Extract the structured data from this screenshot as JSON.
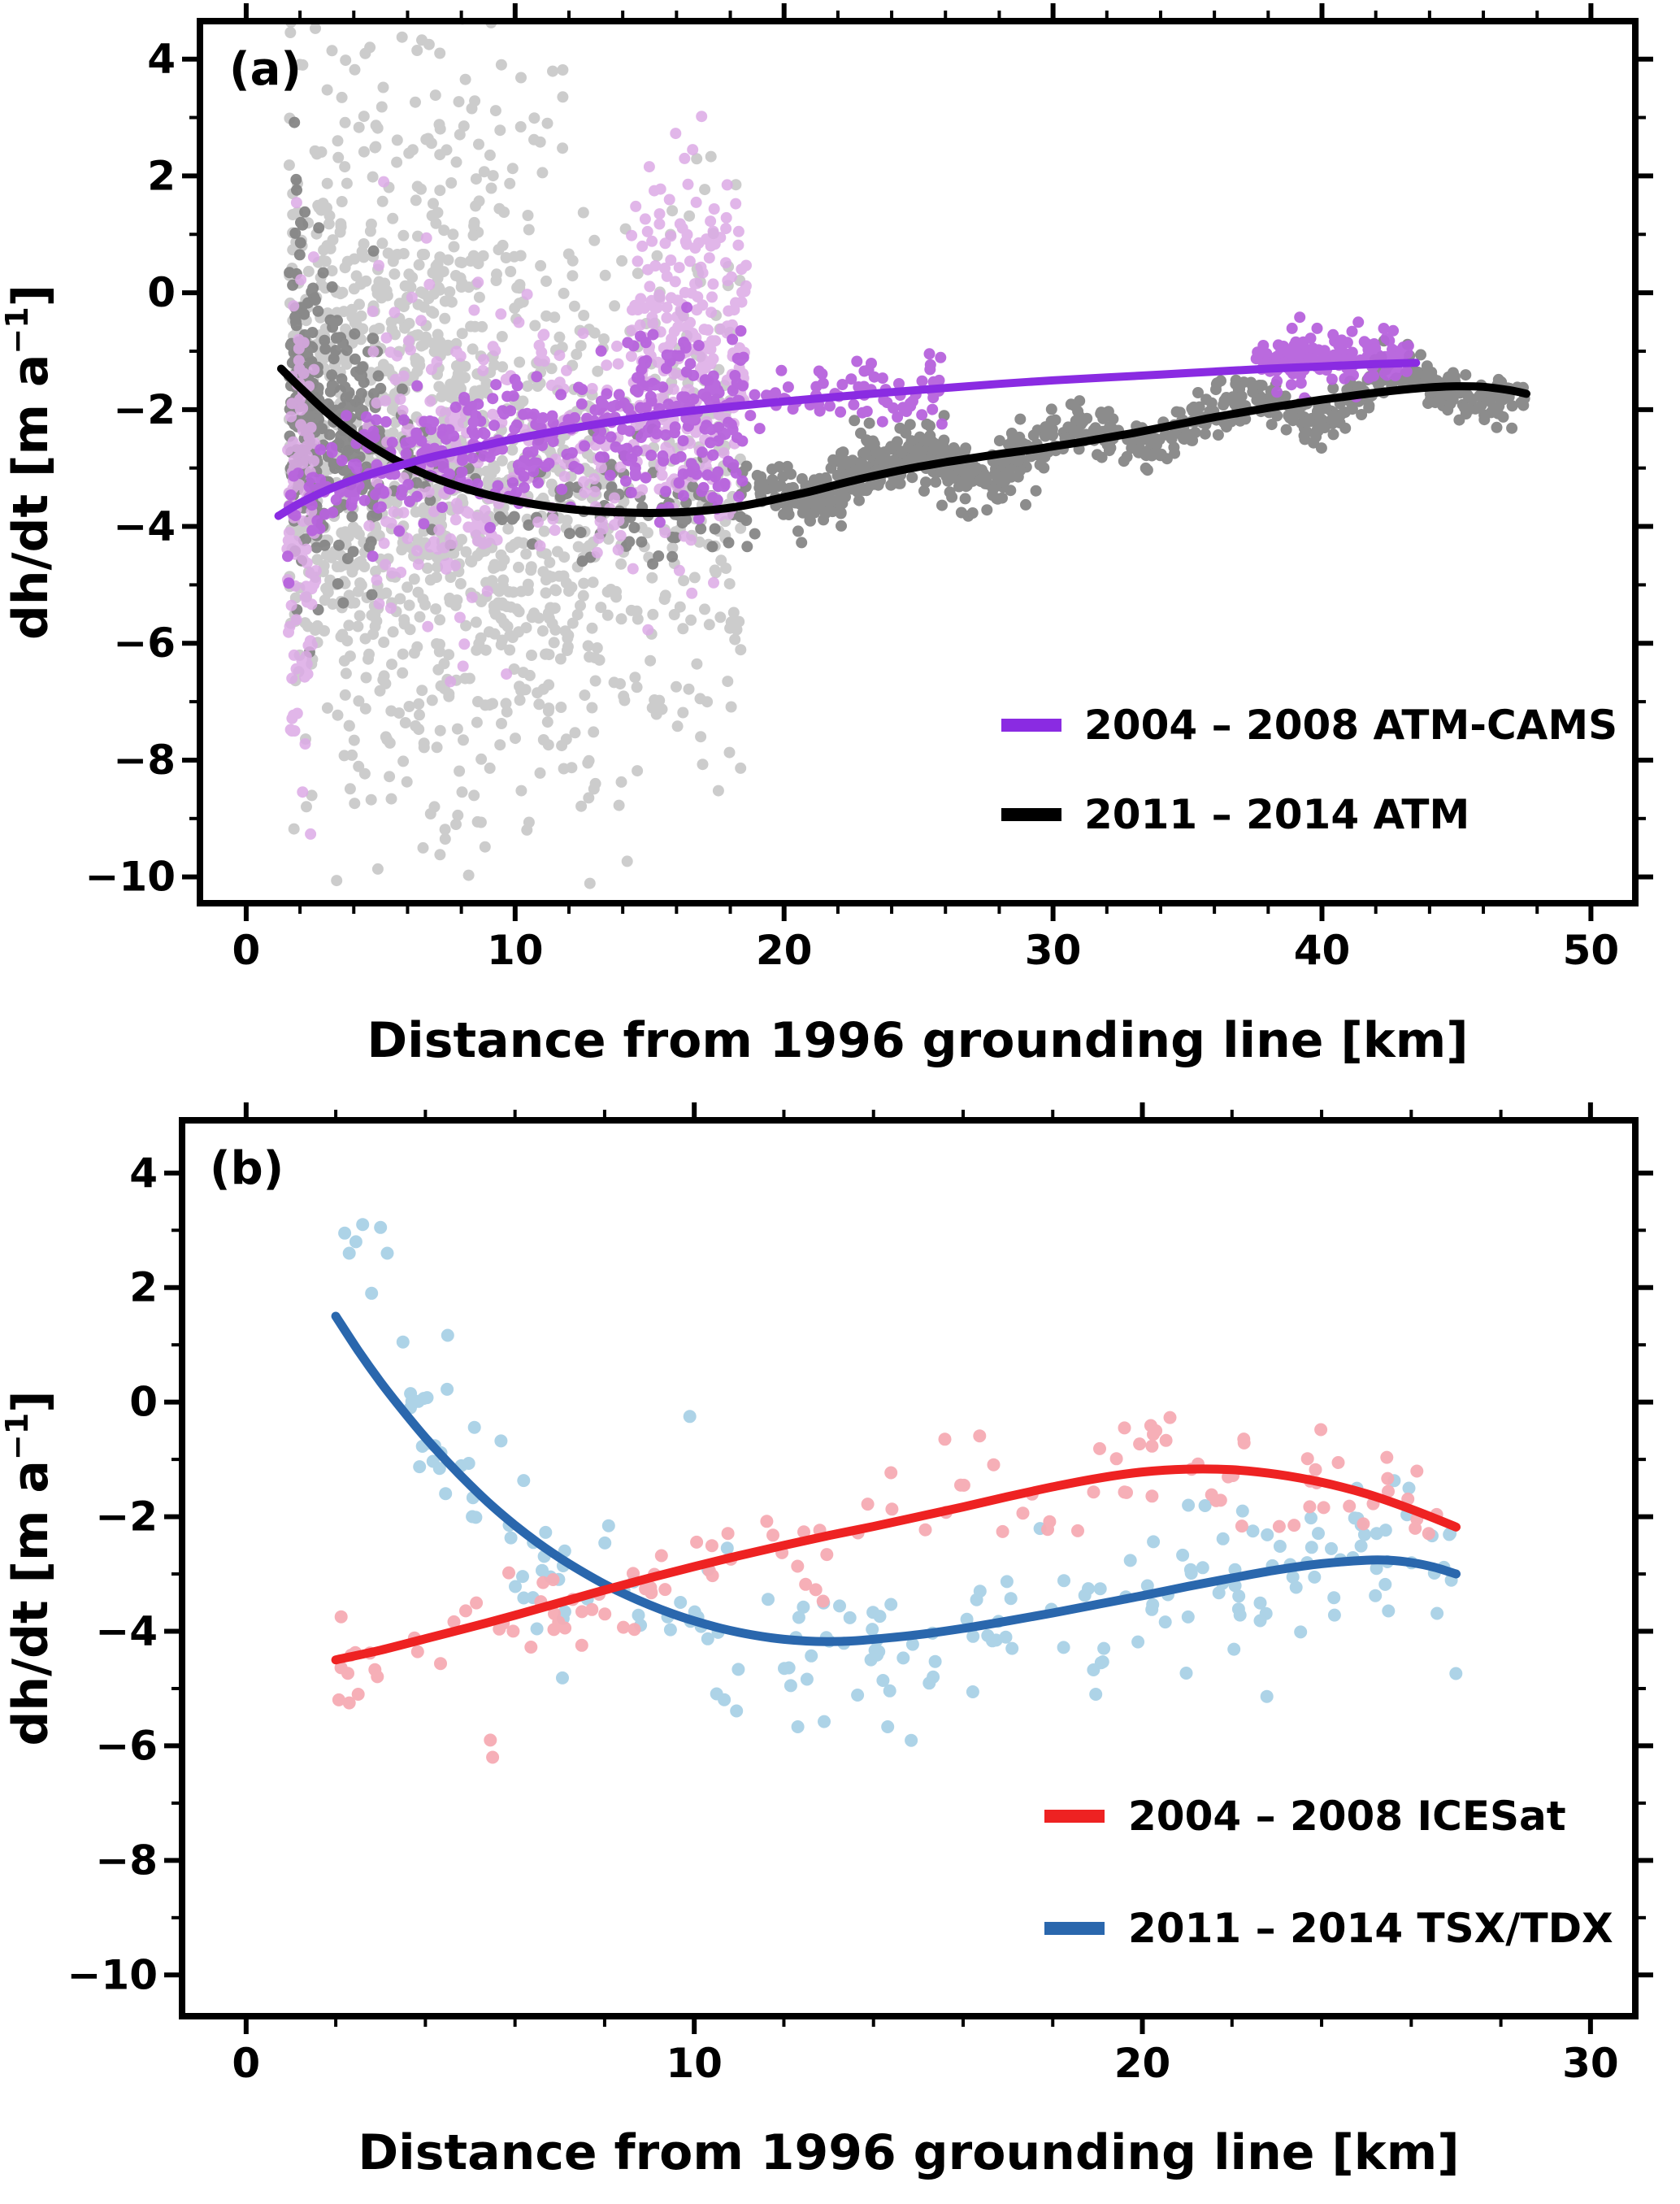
{
  "figure_background": "#ffffff",
  "chart_data": [
    {
      "id": "a",
      "type": "scatter",
      "panel_label": "(a)",
      "xlabel": "Distance from 1996 grounding line [km]",
      "ylabel": {
        "pre": "dh/dt [m a",
        "sup": "−1",
        "post": "]"
      },
      "xlim": [
        -1.72,
        51.65
      ],
      "ylim": [
        -10.45,
        4.65
      ],
      "xticks": {
        "major": [
          0,
          10,
          20,
          30,
          40,
          50
        ],
        "minor_step": 2
      },
      "yticks": {
        "major": [
          4,
          2,
          0,
          -2,
          -4,
          -6,
          -8,
          -10
        ],
        "minor_step": 1
      },
      "grid": false,
      "legend_position": "lower right",
      "curves": {
        "cams": [
          [
            1.2,
            -3.82
          ],
          [
            2,
            -3.6
          ],
          [
            3,
            -3.38
          ],
          [
            4,
            -3.2
          ],
          [
            5,
            -3.05
          ],
          [
            6,
            -2.92
          ],
          [
            7,
            -2.8
          ],
          [
            8,
            -2.7
          ],
          [
            9,
            -2.6
          ],
          [
            10,
            -2.5
          ],
          [
            12,
            -2.33
          ],
          [
            14,
            -2.18
          ],
          [
            16,
            -2.05
          ],
          [
            18,
            -1.95
          ],
          [
            20,
            -1.86
          ],
          [
            22,
            -1.78
          ],
          [
            24,
            -1.7
          ],
          [
            26,
            -1.63
          ],
          [
            28,
            -1.56
          ],
          [
            30,
            -1.5
          ],
          [
            32,
            -1.45
          ],
          [
            34,
            -1.4
          ],
          [
            36,
            -1.35
          ],
          [
            38,
            -1.3
          ],
          [
            40,
            -1.26
          ],
          [
            42,
            -1.22
          ],
          [
            43.5,
            -1.2
          ]
        ],
        "atm": [
          [
            1.3,
            -1.3
          ],
          [
            2,
            -1.62
          ],
          [
            3,
            -2.05
          ],
          [
            4,
            -2.42
          ],
          [
            5,
            -2.72
          ],
          [
            6,
            -2.97
          ],
          [
            7,
            -3.17
          ],
          [
            8,
            -3.33
          ],
          [
            9,
            -3.46
          ],
          [
            10,
            -3.56
          ],
          [
            11,
            -3.64
          ],
          [
            12,
            -3.7
          ],
          [
            13,
            -3.74
          ],
          [
            14,
            -3.76
          ],
          [
            15,
            -3.77
          ],
          [
            16,
            -3.76
          ],
          [
            17,
            -3.73
          ],
          [
            18,
            -3.68
          ],
          [
            19,
            -3.6
          ],
          [
            20,
            -3.5
          ],
          [
            21,
            -3.4
          ],
          [
            22,
            -3.28
          ],
          [
            23,
            -3.17
          ],
          [
            24,
            -3.07
          ],
          [
            25,
            -2.98
          ],
          [
            26,
            -2.9
          ],
          [
            27,
            -2.83
          ],
          [
            28,
            -2.76
          ],
          [
            29,
            -2.7
          ],
          [
            30,
            -2.63
          ],
          [
            31,
            -2.56
          ],
          [
            32,
            -2.48
          ],
          [
            33,
            -2.4
          ],
          [
            34,
            -2.31
          ],
          [
            35,
            -2.22
          ],
          [
            36,
            -2.13
          ],
          [
            37,
            -2.05
          ],
          [
            38,
            -1.97
          ],
          [
            39,
            -1.9
          ],
          [
            40,
            -1.83
          ],
          [
            41,
            -1.77
          ],
          [
            42,
            -1.71
          ],
          [
            43,
            -1.66
          ],
          [
            44,
            -1.62
          ],
          [
            45,
            -1.6
          ],
          [
            46,
            -1.61
          ],
          [
            47,
            -1.67
          ],
          [
            47.6,
            -1.73
          ]
        ]
      },
      "scatter": [
        {
          "name": "ATM 2011-2014 point cloud light gray",
          "color": "#c4c4c4",
          "opacity": 0.85,
          "radius": 7,
          "clusters": [
            {
              "x0": 1.6,
              "x1": 3.6,
              "n": 240,
              "y": -2.2,
              "sd": 2.7
            },
            {
              "x0": 3.6,
              "x1": 6.5,
              "n": 300,
              "y": -3.0,
              "sd": 3.0
            },
            {
              "x0": 6.5,
              "x1": 9.5,
              "n": 330,
              "y": -3.0,
              "sd": 3.1
            },
            {
              "x0": 9.5,
              "x1": 13.0,
              "n": 260,
              "y": -3.8,
              "sd": 2.6
            },
            {
              "x0": 13.0,
              "x1": 18.5,
              "n": 230,
              "y": -3.6,
              "sd": 2.3
            },
            {
              "x0": 2.0,
              "x1": 12.0,
              "n": 90,
              "y": 0.8,
              "sd": 1.8
            }
          ],
          "points": [
            [
              7.4,
              -9.35
            ],
            [
              7.8,
              -9.1
            ],
            [
              7.0,
              -8.8
            ],
            [
              6.8,
              4.25
            ],
            [
              7.2,
              4.1
            ],
            [
              4.6,
              4.2
            ],
            [
              2.1,
              3.9
            ],
            [
              11.2,
              2.9
            ],
            [
              16.9,
              -7.6
            ]
          ]
        },
        {
          "name": "ATM 2011-2014 dense band dark gray",
          "color": "#868686",
          "opacity": 0.95,
          "radius": 7,
          "clusters": [
            {
              "x0": 1.6,
              "x1": 2.7,
              "n": 150,
              "curve": "atm",
              "sd": 1.5
            },
            {
              "x0": 2.7,
              "x1": 5.0,
              "n": 150,
              "curve": "atm",
              "sd": 1.1
            },
            {
              "x0": 5.0,
              "x1": 19.0,
              "n": 130,
              "curve": "atm",
              "sd": 0.5
            },
            {
              "x0": 19.0,
              "x1": 47.6,
              "n": 620,
              "curve": "atm",
              "sd": 0.2,
              "wiggle": [
                0.26,
                1.05,
                0.6
              ]
            },
            {
              "x0": 20.5,
              "x1": 30.0,
              "n": 190,
              "curve": "atm",
              "sd": 0.3,
              "wiggle": [
                0.38,
                0.8,
                1.8
              ]
            }
          ]
        },
        {
          "name": "ATM-CAMS 2004-2008 point cloud light purple",
          "color": "#dcaae6",
          "opacity": 0.85,
          "radius": 7,
          "clusters": [
            {
              "x0": 1.5,
              "x1": 2.6,
              "n": 100,
              "y": -3.8,
              "sd": 1.9
            },
            {
              "x0": 4.5,
              "x1": 9.0,
              "n": 130,
              "y": -2.9,
              "sd": 1.4
            },
            {
              "x0": 9.0,
              "x1": 14.0,
              "n": 90,
              "y": -2.7,
              "sd": 1.2
            },
            {
              "x0": 14.3,
              "x1": 18.6,
              "n": 280,
              "y": -1.1,
              "sd": 1.4
            }
          ],
          "points": [
            [
              1.8,
              -7.5
            ],
            [
              1.9,
              -7.2
            ],
            [
              1.7,
              -6.6
            ],
            [
              16.6,
              2.45
            ],
            [
              16.3,
              2.3
            ]
          ]
        },
        {
          "name": "ATM-CAMS 2004-2008 dense band medium purple",
          "color": "#b763dd",
          "opacity": 0.95,
          "radius": 7,
          "clusters": [
            {
              "x0": 1.3,
              "x1": 14.0,
              "n": 240,
              "curve": "cams",
              "sd": 0.5
            },
            {
              "x0": 14.0,
              "x1": 18.5,
              "n": 160,
              "curve": "cams",
              "sd": 0.85
            },
            {
              "x0": 18.5,
              "x1": 26.0,
              "n": 70,
              "curve": "cams",
              "sd": 0.3
            },
            {
              "x0": 37.5,
              "x1": 43.3,
              "n": 150,
              "y": -1.15,
              "sd": 0.22
            }
          ]
        }
      ],
      "lines": [
        {
          "name": "2011-2014 ATM fit",
          "curve": "atm",
          "color": "#000000",
          "width": 10
        },
        {
          "name": "2004-2008 ATM-CAMS fit",
          "curve": "cams",
          "color": "#8a2be2",
          "width": 10
        }
      ],
      "legend": [
        {
          "label": "2004 – 2008 ATM-CAMS",
          "color": "#8a2be2"
        },
        {
          "label": "2011 – 2014 ATM",
          "color": "#000000"
        }
      ]
    },
    {
      "id": "b",
      "type": "scatter",
      "panel_label": "(b)",
      "xlabel": "Distance from 1996 grounding line [km]",
      "ylabel": {
        "pre": "dh/dt [m a",
        "sup": "−1",
        "post": "]"
      },
      "xlim": [
        -1.43,
        31.0
      ],
      "ylim": [
        -10.72,
        4.92
      ],
      "xticks": {
        "major": [
          0,
          10,
          20,
          30
        ],
        "minor_step": 2
      },
      "yticks": {
        "major": [
          4,
          2,
          0,
          -2,
          -4,
          -6,
          -8,
          -10
        ],
        "minor_step": 1
      },
      "grid": false,
      "legend_position": "lower right",
      "curves": {
        "icesat": [
          [
            2,
            -4.5
          ],
          [
            3,
            -4.33
          ],
          [
            4,
            -4.13
          ],
          [
            5,
            -3.93
          ],
          [
            6,
            -3.72
          ],
          [
            7,
            -3.5
          ],
          [
            8,
            -3.28
          ],
          [
            9,
            -3.07
          ],
          [
            10,
            -2.87
          ],
          [
            11,
            -2.68
          ],
          [
            12,
            -2.5
          ],
          [
            13,
            -2.33
          ],
          [
            14,
            -2.17
          ],
          [
            15,
            -2.0
          ],
          [
            16,
            -1.83
          ],
          [
            17,
            -1.65
          ],
          [
            18,
            -1.48
          ],
          [
            19,
            -1.33
          ],
          [
            20,
            -1.22
          ],
          [
            21,
            -1.17
          ],
          [
            22,
            -1.18
          ],
          [
            23,
            -1.26
          ],
          [
            24,
            -1.4
          ],
          [
            25,
            -1.6
          ],
          [
            26,
            -1.87
          ],
          [
            27,
            -2.18
          ]
        ],
        "tsx": [
          [
            2,
            1.5
          ],
          [
            2.5,
            0.9
          ],
          [
            3,
            0.35
          ],
          [
            3.5,
            -0.15
          ],
          [
            4,
            -0.62
          ],
          [
            4.5,
            -1.05
          ],
          [
            5,
            -1.45
          ],
          [
            5.5,
            -1.82
          ],
          [
            6,
            -2.15
          ],
          [
            6.5,
            -2.45
          ],
          [
            7,
            -2.72
          ],
          [
            7.5,
            -2.96
          ],
          [
            8,
            -3.18
          ],
          [
            8.5,
            -3.37
          ],
          [
            9,
            -3.54
          ],
          [
            9.5,
            -3.69
          ],
          [
            10,
            -3.82
          ],
          [
            10.5,
            -3.93
          ],
          [
            11,
            -4.02
          ],
          [
            11.5,
            -4.09
          ],
          [
            12,
            -4.14
          ],
          [
            12.5,
            -4.17
          ],
          [
            13,
            -4.18
          ],
          [
            13.5,
            -4.17
          ],
          [
            14,
            -4.14
          ],
          [
            15,
            -4.06
          ],
          [
            16,
            -3.95
          ],
          [
            17,
            -3.82
          ],
          [
            18,
            -3.68
          ],
          [
            19,
            -3.53
          ],
          [
            20,
            -3.38
          ],
          [
            21,
            -3.22
          ],
          [
            22,
            -3.07
          ],
          [
            23,
            -2.93
          ],
          [
            24,
            -2.82
          ],
          [
            25,
            -2.76
          ],
          [
            25.5,
            -2.76
          ],
          [
            26,
            -2.8
          ],
          [
            26.5,
            -2.88
          ],
          [
            27,
            -3.0
          ]
        ]
      },
      "scatter": [
        {
          "name": "TSX-TDX 2011-2014 points light blue",
          "color": "#a9d1e6",
          "opacity": 0.95,
          "radius": 8,
          "clusters": [
            {
              "x0": 3.5,
              "x1": 27.0,
              "n": 200,
              "curve": "tsx",
              "sd": 0.75
            }
          ],
          "points": [
            [
              2.2,
              2.95
            ],
            [
              2.45,
              2.8
            ],
            [
              2.6,
              3.1
            ],
            [
              3.0,
              3.05
            ],
            [
              3.15,
              2.6
            ],
            [
              2.3,
              2.6
            ],
            [
              3.5,
              1.05
            ],
            [
              9.9,
              -0.25
            ],
            [
              2.8,
              1.9
            ]
          ]
        },
        {
          "name": "ICESat 2004-2008 points pink",
          "color": "#f6abb4",
          "opacity": 0.95,
          "radius": 8,
          "clusters": [
            {
              "x0": 2.0,
              "x1": 27.0,
              "n": 120,
              "curve": "icesat",
              "sd": 0.42,
              "wiggle": [
                0.3,
                1.3,
                0.4
              ]
            }
          ],
          "points": [
            [
              5.5,
              -6.2
            ],
            [
              5.45,
              -5.9
            ],
            [
              2.3,
              -5.25
            ],
            [
              2.5,
              -5.1
            ],
            [
              19.6,
              -0.45
            ],
            [
              20.3,
              -0.5
            ]
          ]
        }
      ],
      "lines": [
        {
          "name": "2011-2014 TSX-TDX fit",
          "curve": "tsx",
          "color": "#2a67ad",
          "width": 11
        },
        {
          "name": "2004-2008 ICESat fit",
          "curve": "icesat",
          "color": "#ee2222",
          "width": 11
        }
      ],
      "legend": [
        {
          "label": "2004 – 2008 ICESat",
          "color": "#ee2222"
        },
        {
          "label": "2011 – 2014 TSX/TDX",
          "color": "#2a67ad"
        }
      ]
    }
  ]
}
